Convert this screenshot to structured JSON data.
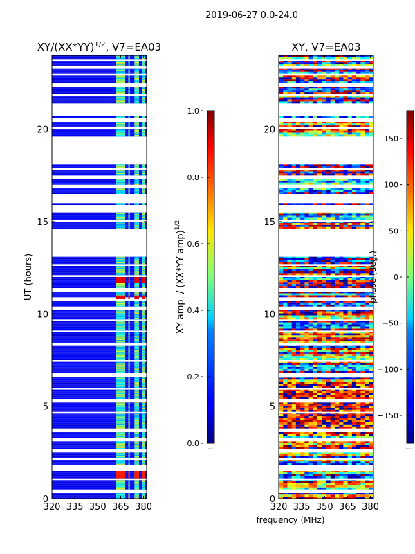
{
  "suptitle": "2019-06-27 0.0-24.0",
  "colors": {
    "masked": "#ffffff",
    "axis": "#000000"
  },
  "chart_data": [
    {
      "type": "heatmap",
      "id": "amplitude",
      "title_main": "XY/(XX*YY)",
      "title_sup": "1/2",
      "title_tail": ", V7=EA03",
      "xlabel": "",
      "ylabel": "UT (hours)",
      "xlim": [
        320,
        382
      ],
      "ylim": [
        0,
        24
      ],
      "xticks": [
        320,
        335,
        350,
        365,
        380
      ],
      "yticks": [
        0,
        5,
        10,
        15,
        20
      ],
      "colorbar": {
        "label_main": "XY amp. / (XX*YY amp)",
        "label_sup": "1/2",
        "range": [
          0.0,
          1.0
        ],
        "ticks": [
          "0.0",
          "0.2",
          "0.4",
          "0.6",
          "0.8",
          "1.0"
        ],
        "tick_values": [
          0.0,
          0.2,
          0.4,
          0.6,
          0.8,
          1.0
        ],
        "colormap": "jet",
        "ellipsis": "......"
      },
      "data_blocks_hours": [
        [
          0.0,
          0.3
        ],
        [
          0.5,
          1.0
        ],
        [
          1.1,
          1.5
        ],
        [
          1.8,
          2.1
        ],
        [
          2.2,
          2.5
        ],
        [
          2.7,
          3.1
        ],
        [
          3.3,
          3.6
        ],
        [
          3.8,
          4.6
        ],
        [
          4.7,
          5.2
        ],
        [
          5.4,
          5.9
        ],
        [
          6.0,
          6.6
        ],
        [
          6.8,
          7.4
        ],
        [
          7.5,
          8.3
        ],
        [
          8.4,
          9.0
        ],
        [
          9.1,
          9.6
        ],
        [
          9.7,
          10.2
        ],
        [
          10.4,
          10.7
        ],
        [
          10.9,
          11.2
        ],
        [
          11.4,
          12.0
        ],
        [
          12.1,
          12.6
        ],
        [
          12.7,
          13.1
        ],
        [
          14.6,
          15.0
        ],
        [
          15.1,
          15.5
        ],
        [
          15.9,
          16.0
        ],
        [
          16.5,
          16.8
        ],
        [
          17.0,
          17.3
        ],
        [
          17.5,
          17.8
        ],
        [
          17.9,
          18.1
        ],
        [
          19.6,
          20.0
        ],
        [
          20.1,
          20.4
        ],
        [
          20.6,
          20.7
        ],
        [
          21.4,
          21.8
        ],
        [
          21.9,
          22.3
        ],
        [
          22.5,
          22.9
        ],
        [
          23.0,
          23.3
        ],
        [
          23.4,
          23.7
        ],
        [
          23.8,
          24.0
        ]
      ],
      "highlight_patches": [
        {
          "hours": [
            1.1,
            1.5
          ],
          "value": 0.85
        },
        {
          "hours": [
            10.8,
            11.0
          ],
          "value": 0.9
        },
        {
          "hours": [
            11.7,
            12.0
          ],
          "value": 0.9
        }
      ],
      "bright_band_mhz": [
        [
          362,
          368
        ],
        [
          370,
          371
        ],
        [
          374,
          377
        ],
        [
          379,
          381
        ]
      ]
    },
    {
      "type": "heatmap",
      "id": "phase",
      "title_main": "XY, V7=EA03",
      "xlabel": "frequency (MHz)",
      "ylabel": "",
      "xlim": [
        320,
        382
      ],
      "ylim": [
        0,
        24
      ],
      "xticks": [
        320,
        335,
        350,
        365,
        380
      ],
      "yticks": [
        0,
        5,
        10,
        15,
        20
      ],
      "colorbar": {
        "label_main": "phase (deg.)",
        "range": [
          -180,
          180
        ],
        "ticks": [
          "−150",
          "−100",
          "−50",
          "0",
          "50",
          "100",
          "150"
        ],
        "tick_values": [
          -150,
          -100,
          -50,
          0,
          50,
          100,
          150
        ],
        "colormap": "jet",
        "ellipsis": "......"
      },
      "data_blocks_hours": [
        [
          0.0,
          0.3
        ],
        [
          0.5,
          1.0
        ],
        [
          1.1,
          1.5
        ],
        [
          1.8,
          2.1
        ],
        [
          2.2,
          2.5
        ],
        [
          2.7,
          3.1
        ],
        [
          3.3,
          3.6
        ],
        [
          3.8,
          4.6
        ],
        [
          4.7,
          5.2
        ],
        [
          5.4,
          5.9
        ],
        [
          6.0,
          6.6
        ],
        [
          6.8,
          7.4
        ],
        [
          7.5,
          8.3
        ],
        [
          8.4,
          9.0
        ],
        [
          9.1,
          9.6
        ],
        [
          9.7,
          10.2
        ],
        [
          10.4,
          10.7
        ],
        [
          10.9,
          11.2
        ],
        [
          11.4,
          12.0
        ],
        [
          12.1,
          12.6
        ],
        [
          12.7,
          13.1
        ],
        [
          14.6,
          15.0
        ],
        [
          15.1,
          15.5
        ],
        [
          15.9,
          16.0
        ],
        [
          16.5,
          16.8
        ],
        [
          17.0,
          17.3
        ],
        [
          17.5,
          17.8
        ],
        [
          17.9,
          18.1
        ],
        [
          19.6,
          20.0
        ],
        [
          20.1,
          20.4
        ],
        [
          20.6,
          20.7
        ],
        [
          21.4,
          21.8
        ],
        [
          21.9,
          22.3
        ],
        [
          22.5,
          22.9
        ],
        [
          23.0,
          23.3
        ],
        [
          23.4,
          23.7
        ],
        [
          23.8,
          24.0
        ]
      ]
    }
  ]
}
